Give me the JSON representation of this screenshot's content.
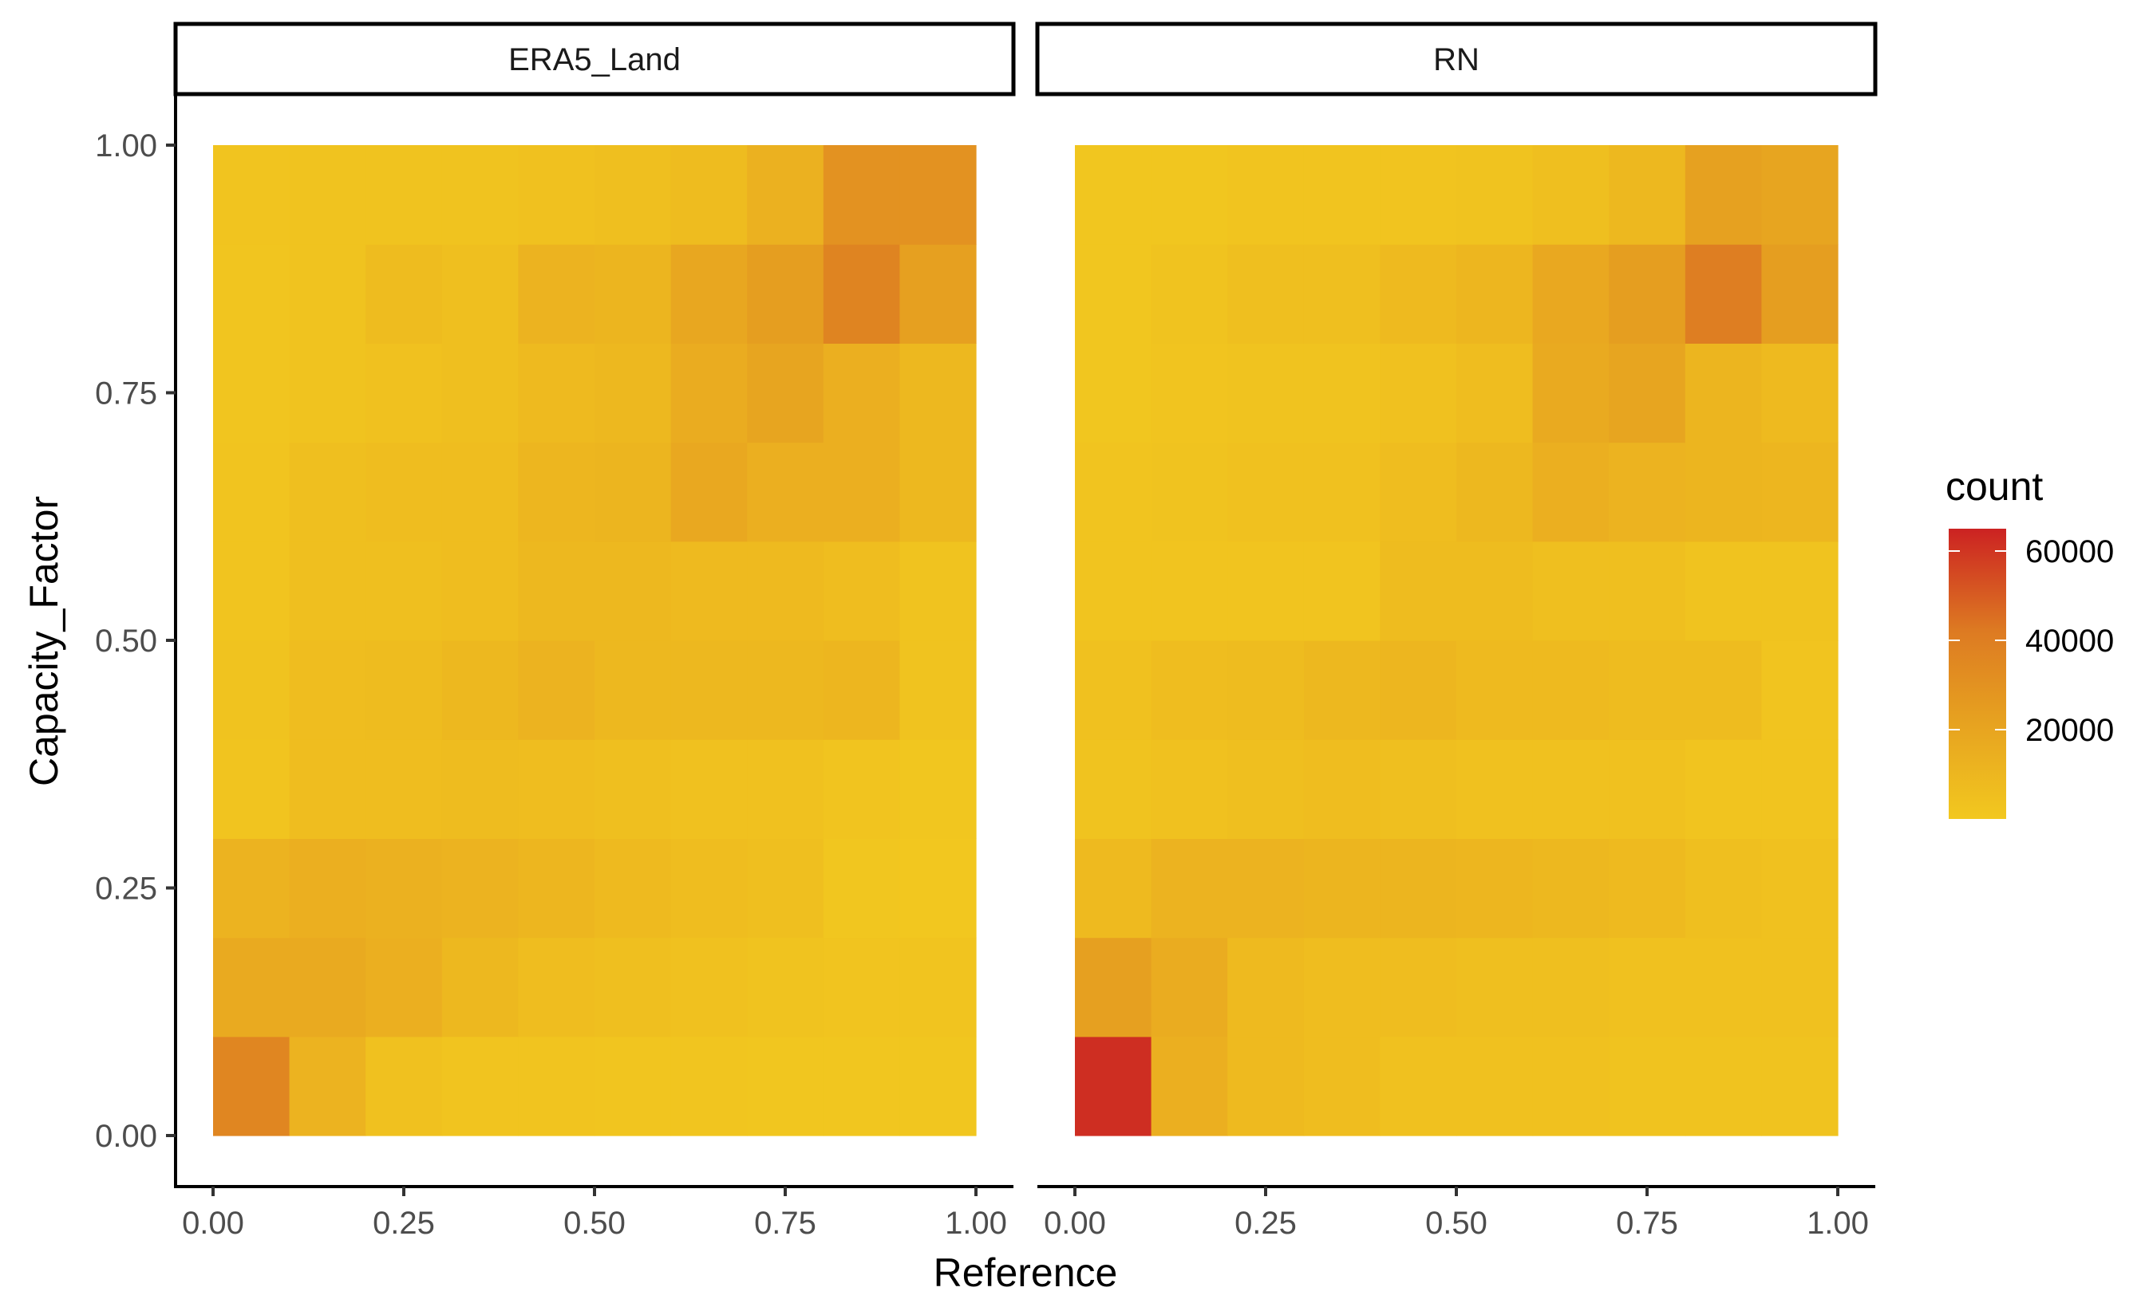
{
  "chart_data": {
    "type": "heatmap",
    "xlabel": "Reference",
    "ylabel": "Capacity_Factor",
    "xlim": [
      0,
      1
    ],
    "ylim": [
      0,
      1
    ],
    "x_ticks": [
      "0.00",
      "0.25",
      "0.50",
      "0.75",
      "1.00"
    ],
    "y_ticks": [
      "0.00",
      "0.25",
      "0.50",
      "0.75",
      "1.00"
    ],
    "x_bins": [
      0.05,
      0.15,
      0.25,
      0.35,
      0.45,
      0.55,
      0.65,
      0.75,
      0.85,
      0.95
    ],
    "y_bins": [
      0.05,
      0.15,
      0.25,
      0.35,
      0.45,
      0.55,
      0.65,
      0.75,
      0.85,
      0.95
    ],
    "legend": {
      "title": "count",
      "ticks": [
        "20000",
        "40000",
        "60000"
      ],
      "tick_values": [
        20000,
        40000,
        60000
      ],
      "min": 0,
      "max": 65000,
      "low_color": "#F2C81F",
      "high_color": "#CC2222",
      "placement": "right"
    },
    "facets": [
      {
        "name": "ERA5_Land",
        "counts": [
          [
            36000,
            12000,
            4000,
            2000,
            2000,
            1500,
            1500,
            1000,
            1000,
            1000
          ],
          [
            17000,
            17000,
            14000,
            9000,
            6000,
            5000,
            4000,
            3000,
            2500,
            2000
          ],
          [
            12000,
            14000,
            13000,
            12000,
            10000,
            8000,
            6000,
            5000,
            1000,
            500
          ],
          [
            2000,
            6000,
            6000,
            7000,
            6000,
            5000,
            4000,
            4000,
            2000,
            1000
          ],
          [
            3000,
            6000,
            7000,
            9000,
            12000,
            9000,
            9000,
            9000,
            10000,
            3000
          ],
          [
            2000,
            5000,
            5000,
            6000,
            9000,
            9000,
            8000,
            8000,
            6000,
            3000
          ],
          [
            2000,
            5000,
            6000,
            6000,
            10000,
            11000,
            18000,
            14000,
            14000,
            9000
          ],
          [
            1500,
            3000,
            4000,
            5000,
            8000,
            9000,
            16000,
            20000,
            14000,
            9000
          ],
          [
            1500,
            3000,
            7000,
            5000,
            12000,
            11000,
            19000,
            24000,
            37000,
            23000
          ],
          [
            2000,
            3000,
            3000,
            3000,
            4000,
            5000,
            7000,
            13000,
            30000,
            30000
          ]
        ]
      },
      {
        "name": "RN",
        "counts": [
          [
            62000,
            14000,
            8000,
            6000,
            4000,
            4000,
            4000,
            3000,
            3000,
            3000
          ],
          [
            23000,
            16000,
            8000,
            6000,
            6000,
            5000,
            5000,
            4000,
            4000,
            4000
          ],
          [
            8000,
            12000,
            12000,
            11000,
            11000,
            10000,
            9000,
            8000,
            5000,
            4000
          ],
          [
            3000,
            4000,
            5000,
            6000,
            5000,
            4000,
            4000,
            4000,
            2000,
            2000
          ],
          [
            4000,
            6000,
            7000,
            9000,
            10000,
            8000,
            8000,
            7000,
            7000,
            2000
          ],
          [
            2000,
            2000,
            2000,
            2000,
            7000,
            7000,
            5000,
            5000,
            3000,
            3000
          ],
          [
            2000,
            3000,
            4000,
            4000,
            6000,
            9000,
            14000,
            12000,
            11000,
            10000
          ],
          [
            1000,
            2000,
            3000,
            3000,
            4000,
            6000,
            17000,
            20000,
            11000,
            8000
          ],
          [
            1000,
            3000,
            5000,
            5000,
            8000,
            10000,
            18000,
            24000,
            40000,
            24000
          ],
          [
            1000,
            1000,
            2000,
            2000,
            2000,
            3000,
            5000,
            9000,
            22000,
            20000
          ]
        ]
      }
    ]
  }
}
